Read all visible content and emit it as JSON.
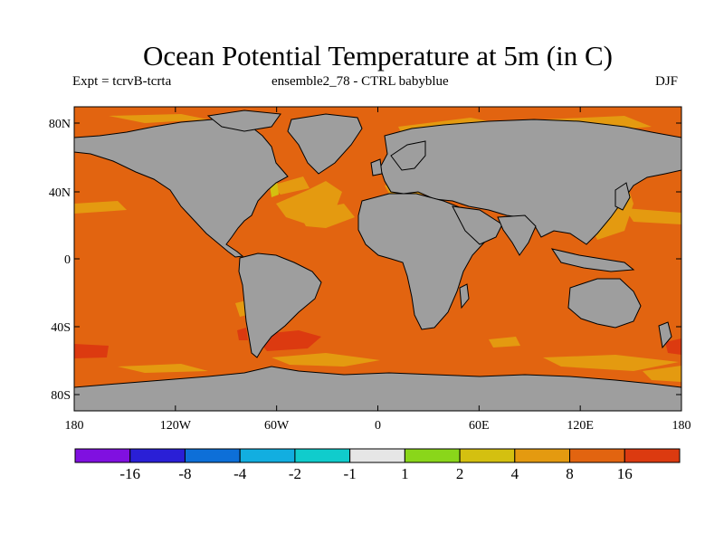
{
  "title": "Ocean Potential Temperature at 5m (in C)",
  "subtitle_left": "Expt = tcrvB-tcrta",
  "subtitle_center": "ensemble2_78 - CTRL babyblue",
  "subtitle_right": "DJF",
  "y_ticks": [
    "80N",
    "40N",
    "0",
    "40S",
    "80S"
  ],
  "x_ticks": [
    "180",
    "120W",
    "60W",
    "0",
    "60E",
    "120E",
    "180"
  ],
  "colorbar": {
    "colors": [
      "#8010e0",
      "#2a1fd6",
      "#0d6fd8",
      "#12aee0",
      "#10cccc",
      "#e6e6e6",
      "#8ad61a",
      "#d4c010",
      "#e49a10",
      "#e26410",
      "#dc3a10"
    ],
    "labels": [
      "-16",
      "-8",
      "-4",
      "-2",
      "-1",
      "1",
      "2",
      "4",
      "8",
      "16"
    ]
  },
  "colors": {
    "ocean": "#e26410",
    "land": "#9e9e9e",
    "warm_patch": "#e49a10",
    "hot_patch": "#dc3a10",
    "mild_patch": "#d4c010"
  }
}
